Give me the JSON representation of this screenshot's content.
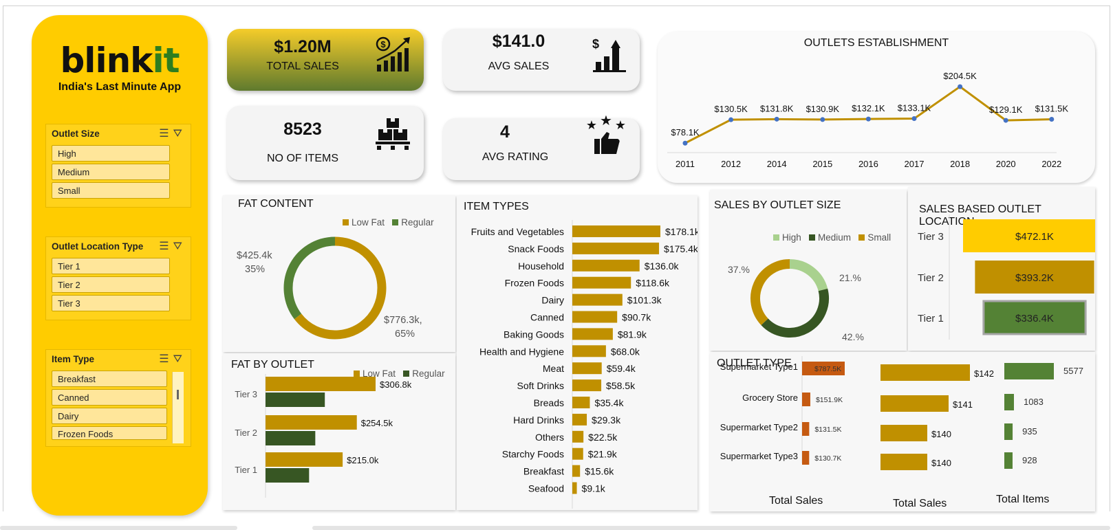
{
  "brand": {
    "name_main": "blink",
    "name_accent": "it",
    "tagline": "India's  Last Minute App"
  },
  "colors": {
    "yellow": "#ffcc00",
    "gold": "#c09000",
    "dark_green": "#375623",
    "green": "#548235",
    "light_green": "#a9d18e",
    "orange": "#c55a11"
  },
  "slicers": {
    "outlet_size": {
      "title": "Outlet Size",
      "items": [
        "High",
        "Medium",
        "Small"
      ]
    },
    "outlet_location": {
      "title": "Outlet Location Type",
      "items": [
        "Tier 1",
        "Tier 2",
        "Tier 3"
      ]
    },
    "item_type": {
      "title": "Item Type",
      "items": [
        "Breakfast",
        "Canned",
        "Dairy",
        "Frozen Foods"
      ]
    }
  },
  "kpis": {
    "total_sales": {
      "value": "$1.20M",
      "label": "TOTAL SALES",
      "icon": "dollar-growth-chart-icon"
    },
    "avg_sales": {
      "value": "$141.0",
      "label": "AVG SALES",
      "icon": "dollar-bar-chart-icon"
    },
    "items": {
      "value": "8523",
      "label": "NO OF ITEMS",
      "icon": "boxes-on-pallet-icon"
    },
    "avg_rating": {
      "value": "4",
      "label": "AVG RATING",
      "icon": "stars-thumbs-up-icon"
    }
  },
  "outlets_establishment": {
    "title": "OUTLETS  ESTABLISHMENT",
    "chart_data": {
      "type": "line",
      "x": [
        "2011",
        "2012",
        "2014",
        "2015",
        "2016",
        "2017",
        "2018",
        "2020",
        "2022"
      ],
      "values": [
        78.1,
        130.5,
        131.8,
        130.9,
        132.1,
        133.1,
        204.5,
        129.1,
        131.5
      ],
      "labels": [
        "$78.1K",
        "$130.5K",
        "$131.8K",
        "$130.9K",
        "$132.1K",
        "$133.1K",
        "$204.5K",
        "$129.1K",
        "$131.5K"
      ]
    }
  },
  "fat_content": {
    "title": "FAT CONTENT",
    "legend": [
      "Low Fat",
      "Regular"
    ],
    "chart_data": {
      "type": "pie",
      "categories": [
        "Low Fat",
        "Regular"
      ],
      "values": [
        776.3,
        425.4
      ],
      "percents": [
        65,
        35
      ]
    },
    "label_regular_value": "$425.4k",
    "label_regular_pct": "35%",
    "label_lowfat_value": "$776.3k,",
    "label_lowfat_pct": "65%"
  },
  "fat_by_outlet": {
    "title": "FAT BY OUTLET",
    "legend": [
      "Low Fat",
      "Regular"
    ],
    "chart_data": {
      "type": "bar",
      "categories": [
        "Tier 3",
        "Tier 2",
        "Tier 1"
      ],
      "series": [
        {
          "name": "Low Fat",
          "values": [
            306.8,
            254.5,
            215.0
          ]
        },
        {
          "name": "Regular",
          "values": [
            165.3,
            138.7,
            121.4
          ]
        }
      ],
      "labels": [
        "$306.8k",
        "$254.5k",
        "$215.0k"
      ]
    }
  },
  "item_types": {
    "title": "ITEM  TYPES",
    "chart_data": {
      "type": "bar",
      "categories": [
        "Fruits and Vegetables",
        "Snack Foods",
        "Household",
        "Frozen Foods",
        "Dairy",
        "Canned",
        "Baking Goods",
        "Health and Hygiene",
        "Meat",
        "Soft Drinks",
        "Breads",
        "Hard Drinks",
        "Others",
        "Starchy Foods",
        "Breakfast",
        "Seafood"
      ],
      "values": [
        178.1,
        175.4,
        136.0,
        118.6,
        101.3,
        90.7,
        81.9,
        68.0,
        59.4,
        58.5,
        35.4,
        29.3,
        22.5,
        21.9,
        15.6,
        9.1
      ],
      "labels": [
        "$178.1k",
        "$175.4k",
        "$136.0k",
        "$118.6k",
        "$101.3k",
        "$90.7k",
        "$81.9k",
        "$68.0k",
        "$59.4k",
        "$58.5k",
        "$35.4k",
        "$29.3k",
        "$22.5k",
        "$21.9k",
        "$15.6k",
        "$9.1k"
      ]
    }
  },
  "sales_by_size": {
    "title": "SALES BY OUTLET SIZE",
    "legend": [
      "High",
      "Medium",
      "Small"
    ],
    "chart_data": {
      "type": "pie",
      "categories": [
        "High",
        "Medium",
        "Small"
      ],
      "values": [
        21,
        42,
        37
      ]
    },
    "labels": {
      "high": "21.%",
      "medium": "42.%",
      "small": "37.%"
    }
  },
  "sales_by_location": {
    "title": "SALES BASED OUTLET  LOCATION",
    "chart_data": {
      "type": "bar",
      "categories": [
        "Tier 3",
        "Tier 2",
        "Tier 1"
      ],
      "values": [
        472.1,
        393.2,
        336.4
      ],
      "labels": [
        "$472.1K",
        "$393.2K",
        "$336.4K"
      ]
    }
  },
  "outlet_type": {
    "title": "OUTLET TYPE",
    "rows": [
      "Supermarket Type1",
      "Grocery Store",
      "Supermarket Type2",
      "Supermarket Type3"
    ],
    "chart_data": [
      {
        "type": "bar",
        "title": "Total Sales",
        "categories": [
          "Supermarket Type1",
          "Grocery Store",
          "Supermarket Type2",
          "Supermarket Type3"
        ],
        "values": [
          787.5,
          151.9,
          131.5,
          130.7
        ],
        "labels": [
          "$787.5K",
          "$151.9K",
          "$131.5K",
          "$130.7K"
        ]
      },
      {
        "type": "bar",
        "title": "Total Sales",
        "categories": [
          "Supermarket Type1",
          "Grocery Store",
          "Supermarket Type2",
          "Supermarket Type3"
        ],
        "values": [
          142,
          141,
          140,
          140
        ],
        "labels": [
          "$142",
          "$141",
          "$140",
          "$140"
        ]
      },
      {
        "type": "bar",
        "title": "Total Items",
        "categories": [
          "Supermarket Type1",
          "Grocery Store",
          "Supermarket Type2",
          "Supermarket Type3"
        ],
        "values": [
          5577,
          1083,
          935,
          928
        ],
        "labels": [
          "5577",
          "1083",
          "935",
          "928"
        ]
      }
    ],
    "footer": [
      "Total Sales",
      "Total Sales",
      "Total Items"
    ]
  }
}
